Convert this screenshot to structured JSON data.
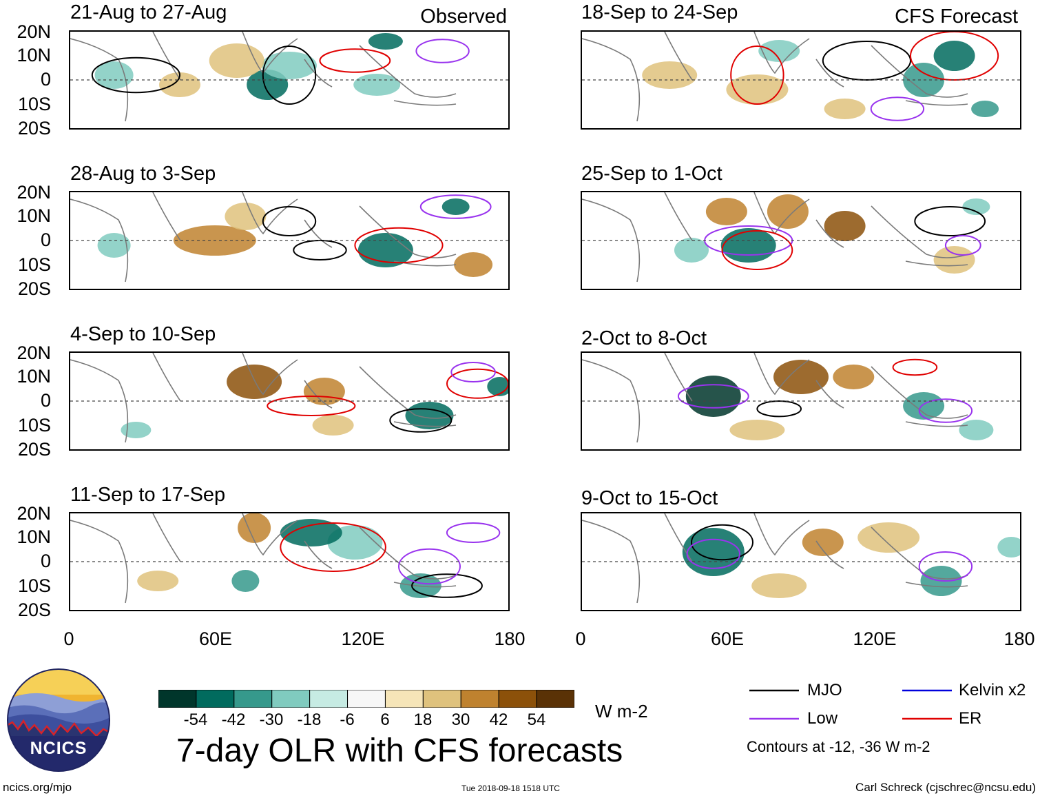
{
  "chart_data": {
    "type": "heatmap",
    "title": "7-day OLR with CFS forecasts",
    "variable": "OLR anomaly",
    "units": "W m-2",
    "x_axis": {
      "ticks": [
        "0",
        "60E",
        "120E",
        "180"
      ],
      "range": [
        0,
        180
      ]
    },
    "y_axis": {
      "ticks": [
        "20N",
        "10N",
        "0",
        "10S",
        "20S"
      ],
      "range": [
        -20,
        20
      ]
    },
    "colorbar": {
      "ticks": [
        "-54",
        "-42",
        "-30",
        "-18",
        "-6",
        "6",
        "18",
        "30",
        "42",
        "54"
      ],
      "colors": [
        "#00362b",
        "#016b5e",
        "#36998c",
        "#80cbbf",
        "#c6ebe3",
        "#f7f7f7",
        "#f6e5b8",
        "#dfc27d",
        "#bf822f",
        "#8c510a",
        "#5a3206"
      ],
      "units": "W m-2"
    },
    "panels": [
      {
        "period": "21-Aug to 27-Aug",
        "source": "Observed",
        "column": 0
      },
      {
        "period": "28-Aug to 3-Sep",
        "source": "Observed",
        "column": 0
      },
      {
        "period": "4-Sep to 10-Sep",
        "source": "Observed",
        "column": 0
      },
      {
        "period": "11-Sep to 17-Sep",
        "source": "Observed",
        "column": 0
      },
      {
        "period": "18-Sep to 24-Sep",
        "source": "CFS Forecast",
        "column": 1
      },
      {
        "period": "25-Sep to 1-Oct",
        "source": "CFS Forecast",
        "column": 1
      },
      {
        "period": "2-Oct to 8-Oct",
        "source": "CFS Forecast",
        "column": 1
      },
      {
        "period": "9-Oct to 15-Oct",
        "source": "CFS Forecast",
        "column": 1
      }
    ],
    "column_labels": {
      "observed": "Observed",
      "forecast": "CFS Forecast"
    },
    "contour_legend": [
      {
        "label": "MJO",
        "color": "#000000"
      },
      {
        "label": "Kelvin x2",
        "color": "#0000dd"
      },
      {
        "label": "Low",
        "color": "#9933ee"
      },
      {
        "label": "ER",
        "color": "#e00000"
      }
    ],
    "contour_note": "Contours at -12, -36 W m-2"
  },
  "footer": {
    "logo_text": "NCICS",
    "url": "ncics.org/mjo",
    "timestamp": "Tue 2018-09-18 1518 UTC",
    "credit": "Carl Schreck (cjschrec@ncsu.edu)"
  }
}
